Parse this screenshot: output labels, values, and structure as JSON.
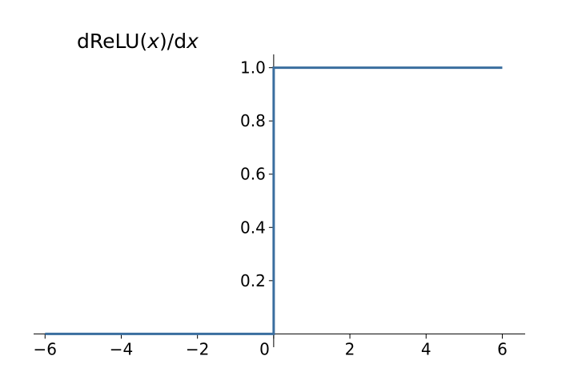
{
  "chart_data": {
    "type": "line",
    "title_parts": {
      "prefix": "dReLU(",
      "var": "x",
      "middle": ")/d",
      "var2": "x"
    },
    "xlabel": "",
    "ylabel": "",
    "xlim": [
      -6.3,
      6.6
    ],
    "ylim": [
      -0.05,
      1.05
    ],
    "x_ticks": [
      -6,
      -4,
      -2,
      0,
      2,
      4,
      6
    ],
    "x_tick_labels": [
      "−6",
      "−4",
      "−2",
      "0",
      "2",
      "4",
      "6"
    ],
    "y_ticks": [
      0.2,
      0.4,
      0.6,
      0.8,
      1.0
    ],
    "y_tick_labels": [
      "0.2",
      "0.4",
      "0.6",
      "0.8",
      "1.0"
    ],
    "series": [
      {
        "x": [
          -6,
          0,
          0,
          6
        ],
        "y": [
          0,
          0,
          1,
          1
        ],
        "color": "#3a6e9f"
      }
    ],
    "grid": false,
    "spines": "center"
  }
}
